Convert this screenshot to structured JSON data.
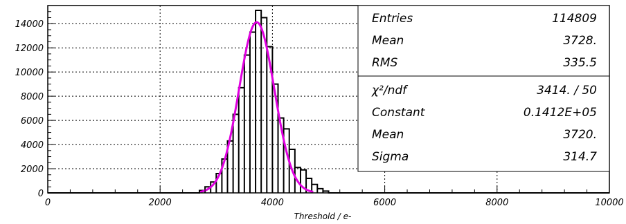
{
  "chart_data": {
    "type": "histogram",
    "xlabel": "Threshold / e-",
    "ylabel": "",
    "xlim": [
      0,
      10000
    ],
    "ylim": [
      0,
      15500
    ],
    "grid": true,
    "x_ticks": [
      0,
      2000,
      4000,
      6000,
      8000,
      10000
    ],
    "y_ticks": [
      0,
      2000,
      4000,
      6000,
      8000,
      10000,
      12000,
      14000
    ],
    "bin_width": 100,
    "bins": [
      {
        "x": 2700,
        "y": 200
      },
      {
        "x": 2800,
        "y": 500
      },
      {
        "x": 2900,
        "y": 900
      },
      {
        "x": 3000,
        "y": 1600
      },
      {
        "x": 3100,
        "y": 2800
      },
      {
        "x": 3200,
        "y": 4300
      },
      {
        "x": 3300,
        "y": 6500
      },
      {
        "x": 3400,
        "y": 8700
      },
      {
        "x": 3500,
        "y": 11400
      },
      {
        "x": 3600,
        "y": 13300
      },
      {
        "x": 3700,
        "y": 15100
      },
      {
        "x": 3800,
        "y": 14500
      },
      {
        "x": 3900,
        "y": 12100
      },
      {
        "x": 4000,
        "y": 9000
      },
      {
        "x": 4100,
        "y": 6200
      },
      {
        "x": 4200,
        "y": 5300
      },
      {
        "x": 4300,
        "y": 3600
      },
      {
        "x": 4400,
        "y": 2100
      },
      {
        "x": 4500,
        "y": 1900
      },
      {
        "x": 4600,
        "y": 1200
      },
      {
        "x": 4700,
        "y": 700
      },
      {
        "x": 4800,
        "y": 350
      },
      {
        "x": 4900,
        "y": 150
      }
    ],
    "fit": {
      "function": "gaus",
      "constant": 14120,
      "mean": 3720,
      "sigma": 314.7
    },
    "stats_box": {
      "rows": [
        {
          "label": "Entries",
          "value": "114809"
        },
        {
          "label": "Mean",
          "value": "3728."
        },
        {
          "label": "RMS",
          "value": "335.5"
        }
      ],
      "fit_rows": [
        {
          "label": "χ²/ndf",
          "value": "3414.  /  50"
        },
        {
          "label": "Constant",
          "value": "0.1412E+05"
        },
        {
          "label": "Mean",
          "value": "3720."
        },
        {
          "label": "Sigma",
          "value": "314.7"
        }
      ]
    },
    "colors": {
      "histogram": "#000000",
      "fit": "#e000e0",
      "grid": "#000000",
      "background": "#ffffff"
    }
  }
}
